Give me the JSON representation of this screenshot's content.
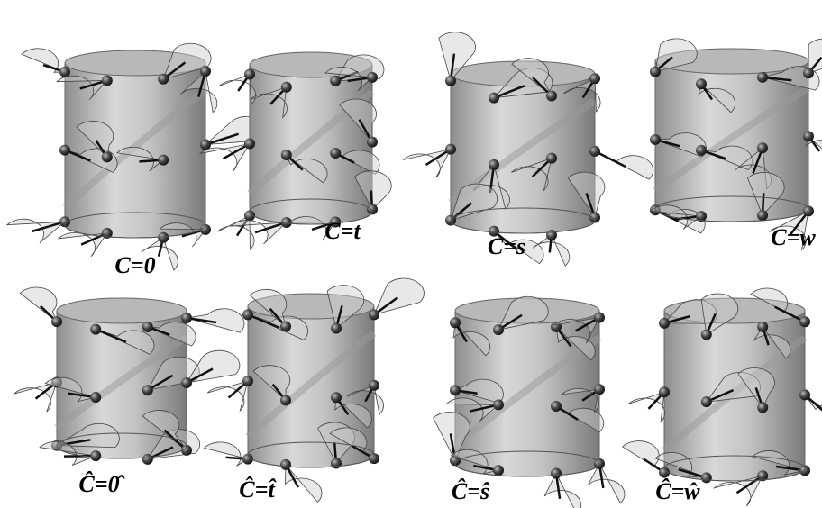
{
  "panels": [
    {
      "label": "C=0"
    },
    {
      "label": "C=t"
    },
    {
      "label": "C=s"
    },
    {
      "label": "C=w"
    },
    {
      "label": "Ĉ=0̂"
    },
    {
      "label": "Ĉ=t̂"
    },
    {
      "label": "Ĉ=ŝ"
    },
    {
      "label": "Ĉ=ŵ"
    }
  ]
}
